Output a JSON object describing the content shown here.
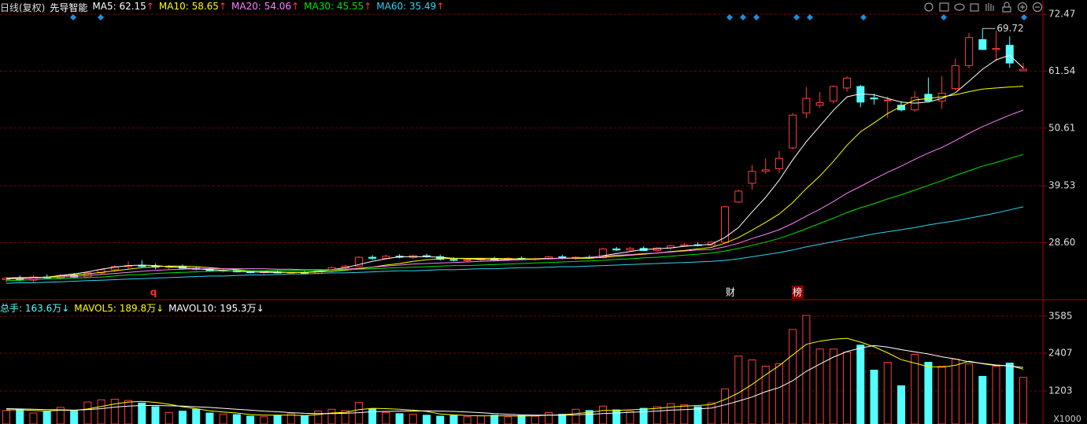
{
  "chart_data": {
    "type": "candlestick",
    "title": "日线(复权)",
    "subtitle": "先导智能",
    "label_separator": ": ",
    "up_color": "#ff3c3c",
    "down_color": "#54ffff",
    "grid": true,
    "ylim": [
      17.8,
      75.2
    ],
    "yticks": [
      72.47,
      61.54,
      50.61,
      39.53,
      {
        "value": 28.6,
        "label": "28.60"
      }
    ],
    "annotations": [
      "财",
      "榜",
      "q"
    ],
    "open": [
      21.5,
      21.8,
      21.4,
      22.0,
      21.8,
      22.3,
      22.0,
      22.8,
      23.4,
      24.0,
      24.2,
      24.1,
      23.9,
      24.0,
      23.7,
      23.5,
      23.2,
      23.3,
      23.0,
      22.9,
      23.0,
      22.8,
      22.9,
      22.7,
      23.4,
      23.8,
      24.1,
      25.8,
      25.6,
      26.0,
      25.8,
      26.1,
      25.9,
      25.4,
      25.2,
      25.3,
      25.5,
      25.3,
      25.6,
      25.4,
      25.5,
      25.9,
      25.6,
      25.8,
      25.7,
      27.4,
      27.2,
      27.5,
      27.1,
      27.6,
      28.0,
      28.2,
      28.1,
      28.7,
      36.4,
      40.0,
      42.3,
      42.8,
      46.8,
      53.5,
      55.0,
      55.8,
      58.3,
      58.6,
      56.4,
      55.9,
      55.0,
      54.1,
      57.1,
      55.8,
      58.2,
      62.6,
      67.6,
      65.7,
      66.5,
      61.6
    ],
    "high": [
      22.0,
      22.3,
      22.4,
      22.5,
      22.6,
      22.8,
      23.0,
      23.6,
      24.3,
      25.0,
      25.2,
      24.6,
      24.3,
      24.4,
      24.0,
      23.8,
      23.6,
      23.6,
      23.3,
      23.2,
      23.3,
      23.0,
      23.2,
      23.5,
      24.0,
      24.3,
      26.0,
      26.2,
      26.3,
      26.4,
      26.3,
      26.5,
      26.3,
      25.8,
      25.6,
      25.7,
      25.9,
      25.8,
      26.0,
      25.7,
      26.1,
      26.3,
      26.0,
      26.2,
      27.6,
      27.8,
      27.8,
      27.9,
      27.8,
      28.2,
      28.6,
      28.7,
      28.9,
      35.7,
      38.8,
      43.5,
      44.8,
      46.2,
      53.5,
      58.5,
      57.5,
      58.8,
      60.6,
      58.9,
      57.2,
      56.7,
      55.8,
      57.7,
      60.3,
      60.6,
      64.0,
      68.9,
      69.72,
      69.3,
      68.2,
      63.1
    ],
    "low": [
      21.0,
      21.2,
      21.0,
      21.6,
      21.5,
      21.9,
      21.8,
      22.5,
      23.0,
      23.6,
      23.8,
      23.5,
      23.5,
      23.6,
      23.3,
      23.0,
      22.9,
      22.9,
      22.7,
      22.6,
      22.7,
      22.5,
      22.6,
      22.5,
      23.0,
      23.5,
      24.0,
      25.3,
      25.4,
      25.6,
      25.5,
      25.7,
      25.2,
      25.0,
      24.9,
      25.0,
      25.2,
      25.1,
      25.3,
      25.2,
      25.3,
      25.4,
      25.3,
      25.5,
      25.6,
      27.0,
      27.0,
      27.0,
      26.8,
      27.2,
      27.8,
      27.9,
      27.9,
      28.6,
      36.2,
      38.8,
      41.8,
      42.0,
      46.5,
      52.5,
      54.5,
      55.3,
      57.6,
      54.6,
      55.1,
      52.5,
      53.8,
      53.7,
      55.7,
      54.3,
      57.8,
      62.1,
      65.6,
      63.4,
      62.2,
      61.5
    ],
    "close": [
      21.8,
      21.4,
      22.0,
      21.8,
      22.3,
      22.0,
      22.8,
      23.4,
      24.0,
      24.2,
      24.1,
      23.9,
      24.0,
      23.7,
      23.5,
      23.2,
      23.3,
      23.0,
      22.9,
      23.0,
      22.8,
      22.9,
      22.7,
      23.4,
      23.8,
      24.1,
      25.8,
      25.6,
      26.0,
      25.8,
      26.1,
      25.9,
      25.4,
      25.2,
      25.3,
      25.5,
      25.3,
      25.6,
      25.4,
      25.5,
      25.9,
      25.6,
      25.8,
      25.7,
      27.4,
      27.2,
      27.5,
      27.1,
      27.6,
      28.0,
      28.2,
      28.1,
      28.7,
      35.5,
      38.5,
      42.3,
      42.6,
      44.8,
      53.1,
      56.3,
      55.5,
      58.6,
      60.2,
      55.6,
      56.2,
      56.0,
      54.1,
      56.5,
      55.8,
      57.3,
      62.6,
      68.0,
      65.7,
      65.9,
      63.1,
      61.9
    ],
    "series": [
      {
        "name": "MA5",
        "color": "#ffffff",
        "trend": "↑",
        "values": [
          21.8,
          21.9,
          21.9,
          22.0,
          22.3,
          22.6,
          23.0,
          23.5,
          23.9,
          24.2,
          24.3,
          24.2,
          24.0,
          23.8,
          23.6,
          23.4,
          23.3,
          23.1,
          23.0,
          22.9,
          22.9,
          22.9,
          22.9,
          23.1,
          23.4,
          23.8,
          24.4,
          25.0,
          25.5,
          25.9,
          25.9,
          25.9,
          25.8,
          25.6,
          25.5,
          25.4,
          25.3,
          25.4,
          25.5,
          25.5,
          25.6,
          25.6,
          25.7,
          25.7,
          26.1,
          26.5,
          26.9,
          27.3,
          27.4,
          27.6,
          27.9,
          28.1,
          28.3,
          29.6,
          31.5,
          34.5,
          37.3,
          40.6,
          44.5,
          48.0,
          51.0,
          54.0,
          56.6,
          57.2,
          57.0,
          56.3,
          55.6,
          55.4,
          55.6,
          56.3,
          57.4,
          59.6,
          61.9,
          63.7,
          64.6,
          62.15
        ]
      },
      {
        "name": "MA10",
        "color": "#ffff00",
        "trend": "↑",
        "values": [
          21.7,
          21.8,
          21.9,
          22.0,
          22.2,
          22.4,
          22.6,
          22.9,
          23.2,
          23.5,
          23.8,
          24.0,
          24.1,
          24.1,
          24.0,
          23.8,
          23.6,
          23.4,
          23.2,
          23.1,
          23.0,
          22.9,
          22.9,
          23.0,
          23.1,
          23.3,
          23.6,
          23.9,
          24.3,
          24.6,
          25.0,
          25.3,
          25.5,
          25.6,
          25.6,
          25.6,
          25.6,
          25.5,
          25.5,
          25.5,
          25.5,
          25.6,
          25.6,
          25.6,
          25.8,
          26.0,
          26.2,
          26.4,
          26.6,
          26.9,
          27.1,
          27.4,
          27.7,
          28.5,
          29.6,
          31.0,
          32.5,
          34.1,
          36.3,
          39.0,
          41.4,
          44.2,
          47.3,
          49.9,
          51.6,
          53.4,
          54.8,
          56.0,
          56.3,
          56.6,
          57.0,
          57.6,
          58.1,
          58.3,
          58.5,
          58.65
        ]
      },
      {
        "name": "MA20",
        "color": "#ff80ff",
        "trend": "↑",
        "values": [
          21.6,
          21.7,
          21.8,
          21.9,
          22.0,
          22.1,
          22.3,
          22.5,
          22.7,
          22.9,
          23.1,
          23.3,
          23.4,
          23.5,
          23.6,
          23.6,
          23.6,
          23.6,
          23.6,
          23.6,
          23.5,
          23.5,
          23.4,
          23.4,
          23.4,
          23.5,
          23.7,
          23.9,
          24.1,
          24.3,
          24.5,
          24.6,
          24.7,
          24.8,
          24.9,
          25.0,
          25.1,
          25.2,
          25.3,
          25.4,
          25.5,
          25.6,
          25.7,
          25.8,
          26.0,
          26.2,
          26.3,
          26.5,
          26.6,
          26.8,
          27.0,
          27.2,
          27.3,
          27.8,
          28.5,
          29.4,
          30.2,
          31.1,
          32.3,
          33.7,
          35.0,
          36.5,
          38.1,
          39.4,
          40.8,
          42.1,
          43.3,
          44.6,
          45.8,
          46.9,
          48.2,
          49.6,
          50.9,
          52.0,
          53.1,
          54.06
        ]
      },
      {
        "name": "MA30",
        "color": "#00e600",
        "trend": "↑",
        "values": [
          21.3,
          21.4,
          21.5,
          21.6,
          21.7,
          21.8,
          21.9,
          22.0,
          22.2,
          22.4,
          22.5,
          22.7,
          22.8,
          22.9,
          23.0,
          23.1,
          23.1,
          23.2,
          23.2,
          23.2,
          23.3,
          23.3,
          23.3,
          23.3,
          23.4,
          23.4,
          23.5,
          23.6,
          23.7,
          23.8,
          23.9,
          24.0,
          24.1,
          24.2,
          24.2,
          24.3,
          24.4,
          24.5,
          24.6,
          24.7,
          24.8,
          24.9,
          25.0,
          25.1,
          25.2,
          25.4,
          25.5,
          25.7,
          25.8,
          26.0,
          26.2,
          26.4,
          26.6,
          27.0,
          27.5,
          28.1,
          28.7,
          29.4,
          30.3,
          31.3,
          32.3,
          33.3,
          34.4,
          35.3,
          36.1,
          37.0,
          37.8,
          38.7,
          39.6,
          40.5,
          41.5,
          42.4,
          43.3,
          44.0,
          44.8,
          45.55
        ]
      },
      {
        "name": "MA60",
        "color": "#2fd3f0",
        "trend": "↑",
        "values": [
          20.8,
          20.9,
          20.9,
          21.0,
          21.1,
          21.2,
          21.3,
          21.4,
          21.5,
          21.6,
          21.7,
          21.8,
          21.9,
          22.0,
          22.1,
          22.2,
          22.2,
          22.3,
          22.4,
          22.4,
          22.5,
          22.6,
          22.6,
          22.7,
          22.8,
          22.8,
          22.9,
          23.0,
          23.1,
          23.2,
          23.2,
          23.3,
          23.4,
          23.4,
          23.5,
          23.6,
          23.6,
          23.7,
          23.8,
          23.8,
          23.9,
          24.0,
          24.0,
          24.1,
          24.2,
          24.3,
          24.4,
          24.5,
          24.6,
          24.7,
          24.8,
          24.9,
          25.0,
          25.2,
          25.5,
          25.9,
          26.3,
          26.7,
          27.2,
          27.8,
          28.3,
          28.8,
          29.3,
          29.8,
          30.3,
          30.7,
          31.1,
          31.5,
          32.0,
          32.4,
          32.8,
          33.3,
          33.8,
          34.3,
          34.9,
          35.49
        ]
      }
    ],
    "volume": {
      "name": "总手",
      "color": "#54ffff",
      "trend": "↓",
      "last_label": "163.6万",
      "ylim": [
        150,
        3760
      ],
      "yticks": [
        3585,
        2407,
        1203
      ],
      "unit_label": "X1000",
      "values": [
        580,
        620,
        500,
        560,
        680,
        560,
        850,
        920,
        940,
        900,
        820,
        700,
        520,
        560,
        620,
        500,
        470,
        450,
        400,
        380,
        420,
        480,
        400,
        560,
        620,
        580,
        840,
        640,
        520,
        480,
        460,
        430,
        400,
        420,
        380,
        410,
        430,
        380,
        420,
        400,
        520,
        460,
        620,
        580,
        720,
        600,
        560,
        650,
        700,
        800,
        760,
        700,
        820,
        1270,
        2316,
        2192,
        1993,
        2067,
        3163,
        3611,
        2540,
        2540,
        2441,
        2665,
        1868,
        2117,
        1370,
        2366,
        2117,
        1993,
        2217,
        2067,
        1669,
        1993,
        2092,
        1636
      ],
      "series": [
        {
          "name": "MAVOL5",
          "color": "#ffff00",
          "trend": "↓",
          "last_label": "189.8万",
          "values": [
            600,
            600,
            580,
            560,
            590,
            580,
            630,
            710,
            790,
            850,
            870,
            840,
            780,
            700,
            640,
            570,
            530,
            500,
            450,
            430,
            430,
            430,
            420,
            450,
            500,
            520,
            610,
            650,
            640,
            620,
            590,
            550,
            470,
            440,
            420,
            410,
            410,
            410,
            400,
            410,
            430,
            440,
            480,
            520,
            580,
            580,
            600,
            620,
            650,
            690,
            720,
            740,
            770,
            930,
            1140,
            1410,
            1720,
            2010,
            2350,
            2690,
            2790,
            2850,
            2880,
            2760,
            2610,
            2420,
            2200,
            2090,
            1980,
            1960,
            2020,
            2150,
            2070,
            2010,
            2010,
            1898
          ]
        },
        {
          "name": "MAVOL10",
          "color": "#ffffff",
          "trend": "↓",
          "last_label": "195.3万",
          "values": [
            640,
            630,
            620,
            610,
            600,
            590,
            610,
            640,
            690,
            720,
            740,
            740,
            730,
            720,
            700,
            680,
            650,
            620,
            590,
            560,
            540,
            510,
            490,
            480,
            480,
            490,
            510,
            540,
            550,
            560,
            560,
            570,
            560,
            550,
            530,
            510,
            480,
            460,
            440,
            430,
            430,
            430,
            440,
            460,
            480,
            500,
            520,
            540,
            560,
            590,
            610,
            630,
            660,
            760,
            880,
            1010,
            1180,
            1310,
            1530,
            1830,
            2060,
            2280,
            2460,
            2570,
            2650,
            2600,
            2520,
            2450,
            2380,
            2290,
            2220,
            2130,
            2080,
            2030,
            2000,
            1953
          ]
        }
      ]
    }
  }
}
